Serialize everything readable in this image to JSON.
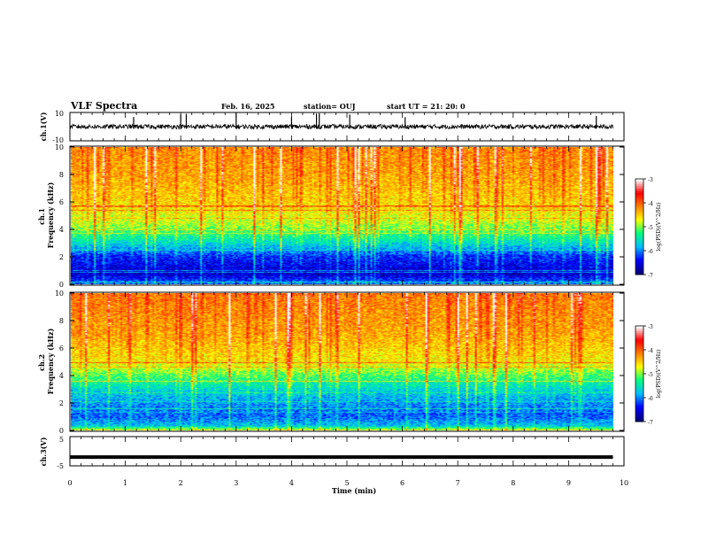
{
  "header": {
    "title": "VLF Spectra",
    "date": "Feb. 16, 2025",
    "station": "station= OUJ",
    "start": "start  UT =   21: 20: 0"
  },
  "chart_data": [
    {
      "type": "line",
      "panel": "ch1-waveform",
      "ylabel": "ch.1(V)",
      "ylim": [
        -10,
        10
      ],
      "y_ticks": [
        "10",
        "-10"
      ],
      "baseline": 0,
      "noise_amplitude": 1.6,
      "spikes_at_min": [
        1.15,
        2.0,
        2.1,
        3.0,
        4.0,
        4.45,
        4.5,
        5.05,
        6.05,
        9.5
      ],
      "xlim": [
        0,
        10
      ]
    },
    {
      "type": "heatmap",
      "panel": "ch1-spectrogram",
      "ylabel": "ch.1\nFrequency (kHz)",
      "ylim": [
        0,
        10
      ],
      "y_ticks": [
        "0",
        "2",
        "4",
        "6",
        "8",
        "10"
      ],
      "xlim": [
        0,
        9.85
      ],
      "colorbar": {
        "label": "log(PSD)(V^2/Hz)",
        "range": [
          -7,
          -3
        ],
        "ticks": [
          "-3",
          "-4",
          "-5",
          "-6",
          "-7"
        ]
      },
      "profile_khz": [
        0,
        0.8,
        1.2,
        2.0,
        2.5,
        3.3,
        4.5,
        6.0,
        8.0,
        10.0
      ],
      "profile_log_psd": [
        -6.1,
        -6.8,
        -6.6,
        -6.4,
        -6.0,
        -5.5,
        -4.9,
        -4.6,
        -4.4,
        -4.3
      ]
    },
    {
      "type": "heatmap",
      "panel": "ch2-spectrogram",
      "ylabel": "ch.2\nFrequency (kHz)",
      "ylim": [
        0,
        10
      ],
      "y_ticks": [
        "0",
        "2",
        "4",
        "6",
        "8",
        "10"
      ],
      "xlim": [
        0,
        9.85
      ],
      "colorbar": {
        "label": "log(PSD)(V^2/Hz)",
        "range": [
          -7,
          -3
        ],
        "ticks": [
          "-3",
          "-4",
          "-5",
          "-6",
          "-7"
        ]
      },
      "profile_khz": [
        0,
        0.3,
        1.0,
        2.0,
        3.0,
        4.0,
        5.0,
        7.0,
        10.0
      ],
      "profile_log_psd": [
        -4.8,
        -5.8,
        -6.2,
        -6.0,
        -5.7,
        -5.2,
        -4.7,
        -4.4,
        -4.2
      ]
    },
    {
      "type": "line",
      "panel": "ch3-waveform",
      "ylabel": "ch.3(V)",
      "ylim": [
        -5,
        5
      ],
      "y_ticks": [
        "5",
        "-5"
      ],
      "baseline": -2,
      "xlim": [
        0,
        10
      ]
    }
  ],
  "x_axis": {
    "label": "Time  (min)",
    "ticks": [
      "0",
      "1",
      "2",
      "3",
      "4",
      "5",
      "6",
      "7",
      "8",
      "9",
      "10"
    ],
    "range": [
      0,
      10
    ]
  },
  "colors": {
    "colormap": [
      "#00007f",
      "#0000ff",
      "#00bfff",
      "#00ff80",
      "#ffff00",
      "#ff8000",
      "#ff0000",
      "#ffffff"
    ]
  }
}
